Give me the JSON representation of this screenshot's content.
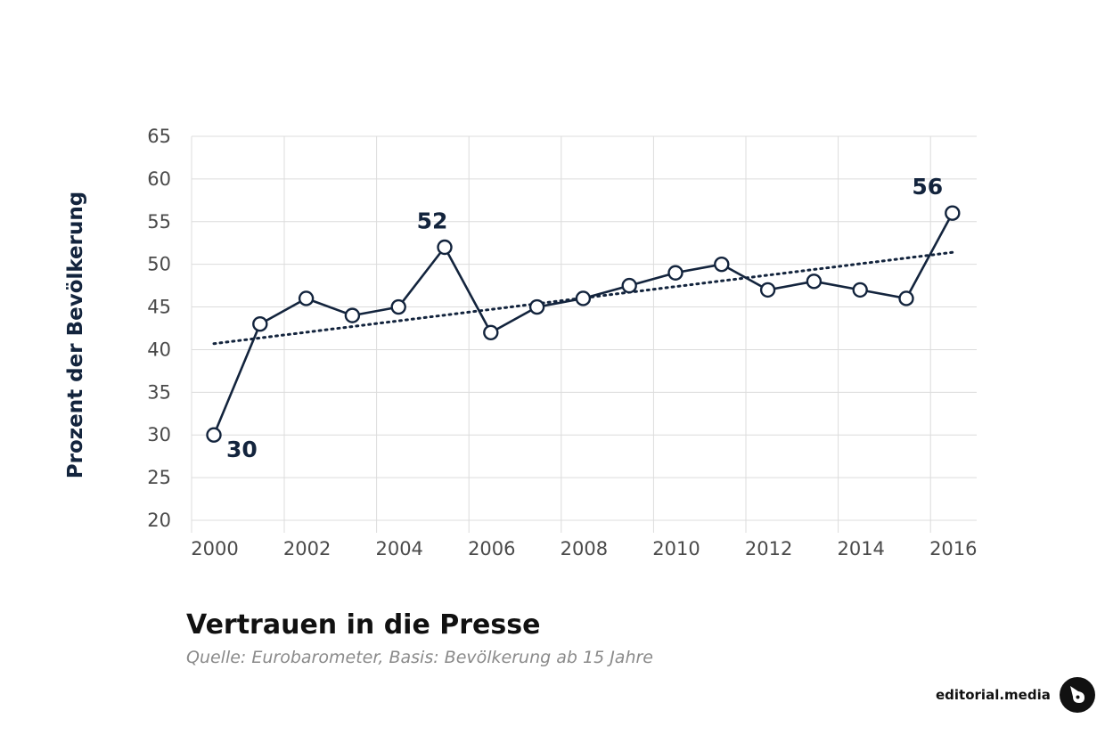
{
  "chart_data": {
    "type": "line",
    "title": "Vertrauen in die Presse",
    "subtitle": "Quelle: Eurobarometer, Basis: Bevölkerung ab 15 Jahre",
    "ylabel": "Prozent der Bevölkerung",
    "xlabel": "",
    "xlim": [
      2000,
      2016.5
    ],
    "ylim": [
      20,
      65
    ],
    "x_ticks": [
      2000,
      2002,
      2004,
      2006,
      2008,
      2010,
      2012,
      2014,
      2016
    ],
    "y_ticks": [
      20,
      25,
      30,
      35,
      40,
      45,
      50,
      55,
      60,
      65
    ],
    "grid": true,
    "series": [
      {
        "x": [
          2000.0,
          2001.0,
          2002.0,
          2003.0,
          2004.0,
          2005.0,
          2006.0,
          2007.0,
          2008.0,
          2009.0,
          2010.0,
          2011.0,
          2012.0,
          2013.0,
          2014.0,
          2015.0,
          2016.0
        ],
        "values": [
          30,
          43,
          46,
          44,
          45,
          52,
          42,
          45,
          46,
          47.5,
          49,
          50,
          47,
          48,
          47,
          46,
          56
        ],
        "color": "#13243d"
      }
    ],
    "trendline": {
      "style": "dotted",
      "x": [
        2000.0,
        2016.0
      ],
      "values": [
        40.7,
        51.4
      ],
      "color": "#13243d"
    },
    "annotations": [
      {
        "x": 2000.0,
        "y": 30,
        "text": "30",
        "position": "bottom-right"
      },
      {
        "x": 2005.0,
        "y": 52,
        "text": "52",
        "position": "above-left"
      },
      {
        "x": 2016.0,
        "y": 56,
        "text": "56",
        "position": "above-left"
      }
    ]
  },
  "brand": {
    "name": "editorial.media",
    "logo_icon": "editorial-media-logo-icon"
  }
}
